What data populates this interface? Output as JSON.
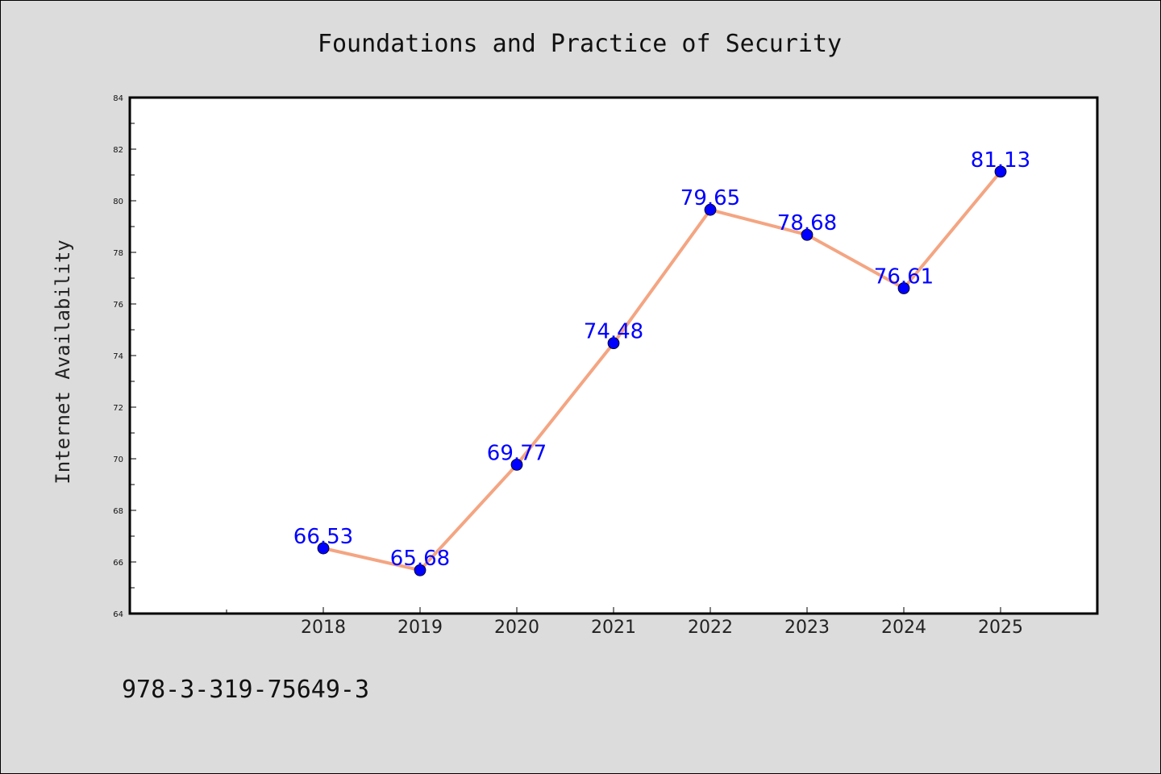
{
  "chart_data": {
    "type": "line",
    "title": "Foundations and Practice of Security",
    "xlabel": "",
    "ylabel": "Internet Availability",
    "categories": [
      "2018",
      "2019",
      "2020",
      "2021",
      "2022",
      "2023",
      "2024",
      "2025"
    ],
    "series": [
      {
        "values": [
          66.53,
          65.68,
          69.77,
          74.48,
          79.65,
          78.68,
          76.61,
          81.13
        ]
      }
    ],
    "data_labels": [
      "66.53",
      "65.68",
      "69.77",
      "74.48",
      "79.65",
      "78.68",
      "76.61",
      "81.13"
    ],
    "ylim": [
      64,
      84
    ],
    "yticks": [
      "64",
      "66",
      "68",
      "70",
      "72",
      "74",
      "76",
      "78",
      "80",
      "82",
      "84"
    ],
    "xlim": [
      2016,
      2026
    ],
    "grid": false,
    "line_color": "#f4a582",
    "marker_color": "#0000ff",
    "label_color": "#0000ff"
  },
  "footer": {
    "text": "978-3-319-75649-3"
  }
}
